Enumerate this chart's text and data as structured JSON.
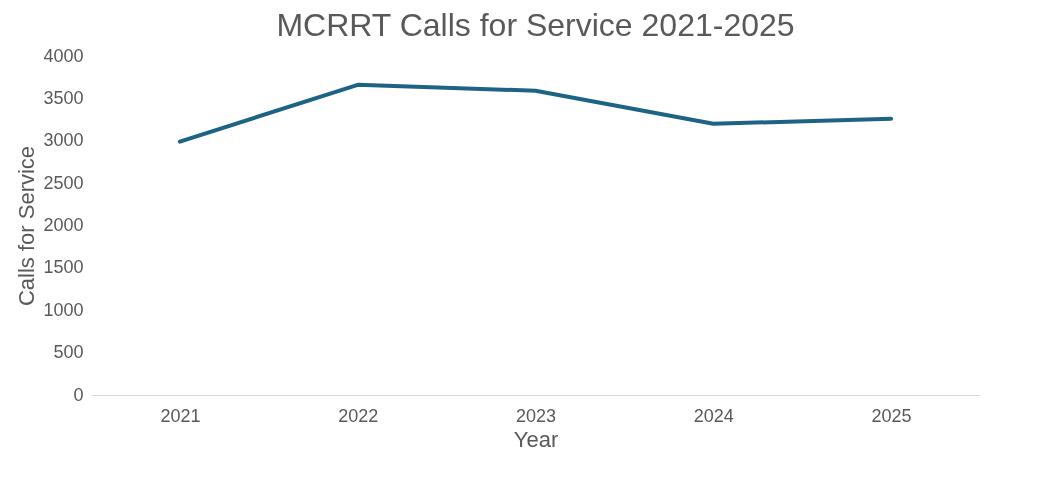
{
  "chart_data": {
    "type": "line",
    "title": "MCRRT Calls for Service 2021-2025",
    "xlabel": "Year",
    "ylabel": "Calls for Service",
    "categories": [
      "2021",
      "2022",
      "2023",
      "2024",
      "2025"
    ],
    "series": [
      {
        "color": "#1d6385",
        "values": [
          2990,
          3660,
          3590,
          3200,
          3260
        ]
      }
    ],
    "ylim": [
      0,
      4000
    ],
    "yticks": [
      0,
      500,
      1000,
      1500,
      2000,
      2500,
      3000,
      3500,
      4000
    ],
    "grid": false,
    "legend": false,
    "marker": "none",
    "line_style": "solid"
  }
}
